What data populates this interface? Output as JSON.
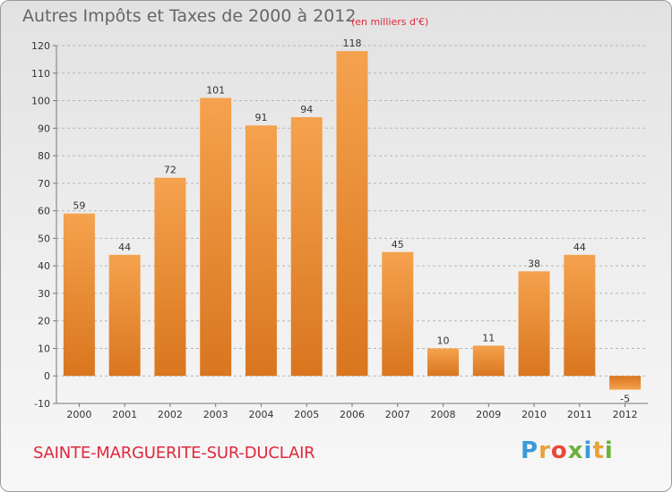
{
  "header": {
    "title": "Autres Impôts et Taxes de 2000 à 2012",
    "subtitle": "(en milliers d'€)"
  },
  "footer": {
    "place": "SAINTE-MARGUERITE-SUR-DUCLAIR",
    "logo": [
      "P",
      "r",
      "o",
      "x",
      "i",
      "t",
      "i"
    ],
    "logo_colors": [
      "#3a9ad9",
      "#e8a23a",
      "#e84a3a",
      "#6bb23a",
      "#3a9ad9",
      "#e8a23a",
      "#6bb23a"
    ]
  },
  "colors": {
    "bar_top": "#f5a24e",
    "bar_bottom": "#d9761f",
    "accent_text": "#e0283d"
  },
  "chart_data": {
    "type": "bar",
    "title": "Autres Impôts et Taxes de 2000 à 2012",
    "subtitle": "(en milliers d'€)",
    "xlabel": "",
    "ylabel": "",
    "categories": [
      "2000",
      "2001",
      "2002",
      "2003",
      "2004",
      "2005",
      "2006",
      "2007",
      "2008",
      "2009",
      "2010",
      "2011",
      "2012"
    ],
    "values": [
      59,
      44,
      72,
      101,
      91,
      94,
      118,
      45,
      10,
      11,
      38,
      44,
      -5
    ],
    "ylim": [
      -10,
      120
    ],
    "yticks": [
      -10,
      0,
      10,
      20,
      30,
      40,
      50,
      60,
      70,
      80,
      90,
      100,
      110,
      120
    ],
    "grid": true
  }
}
